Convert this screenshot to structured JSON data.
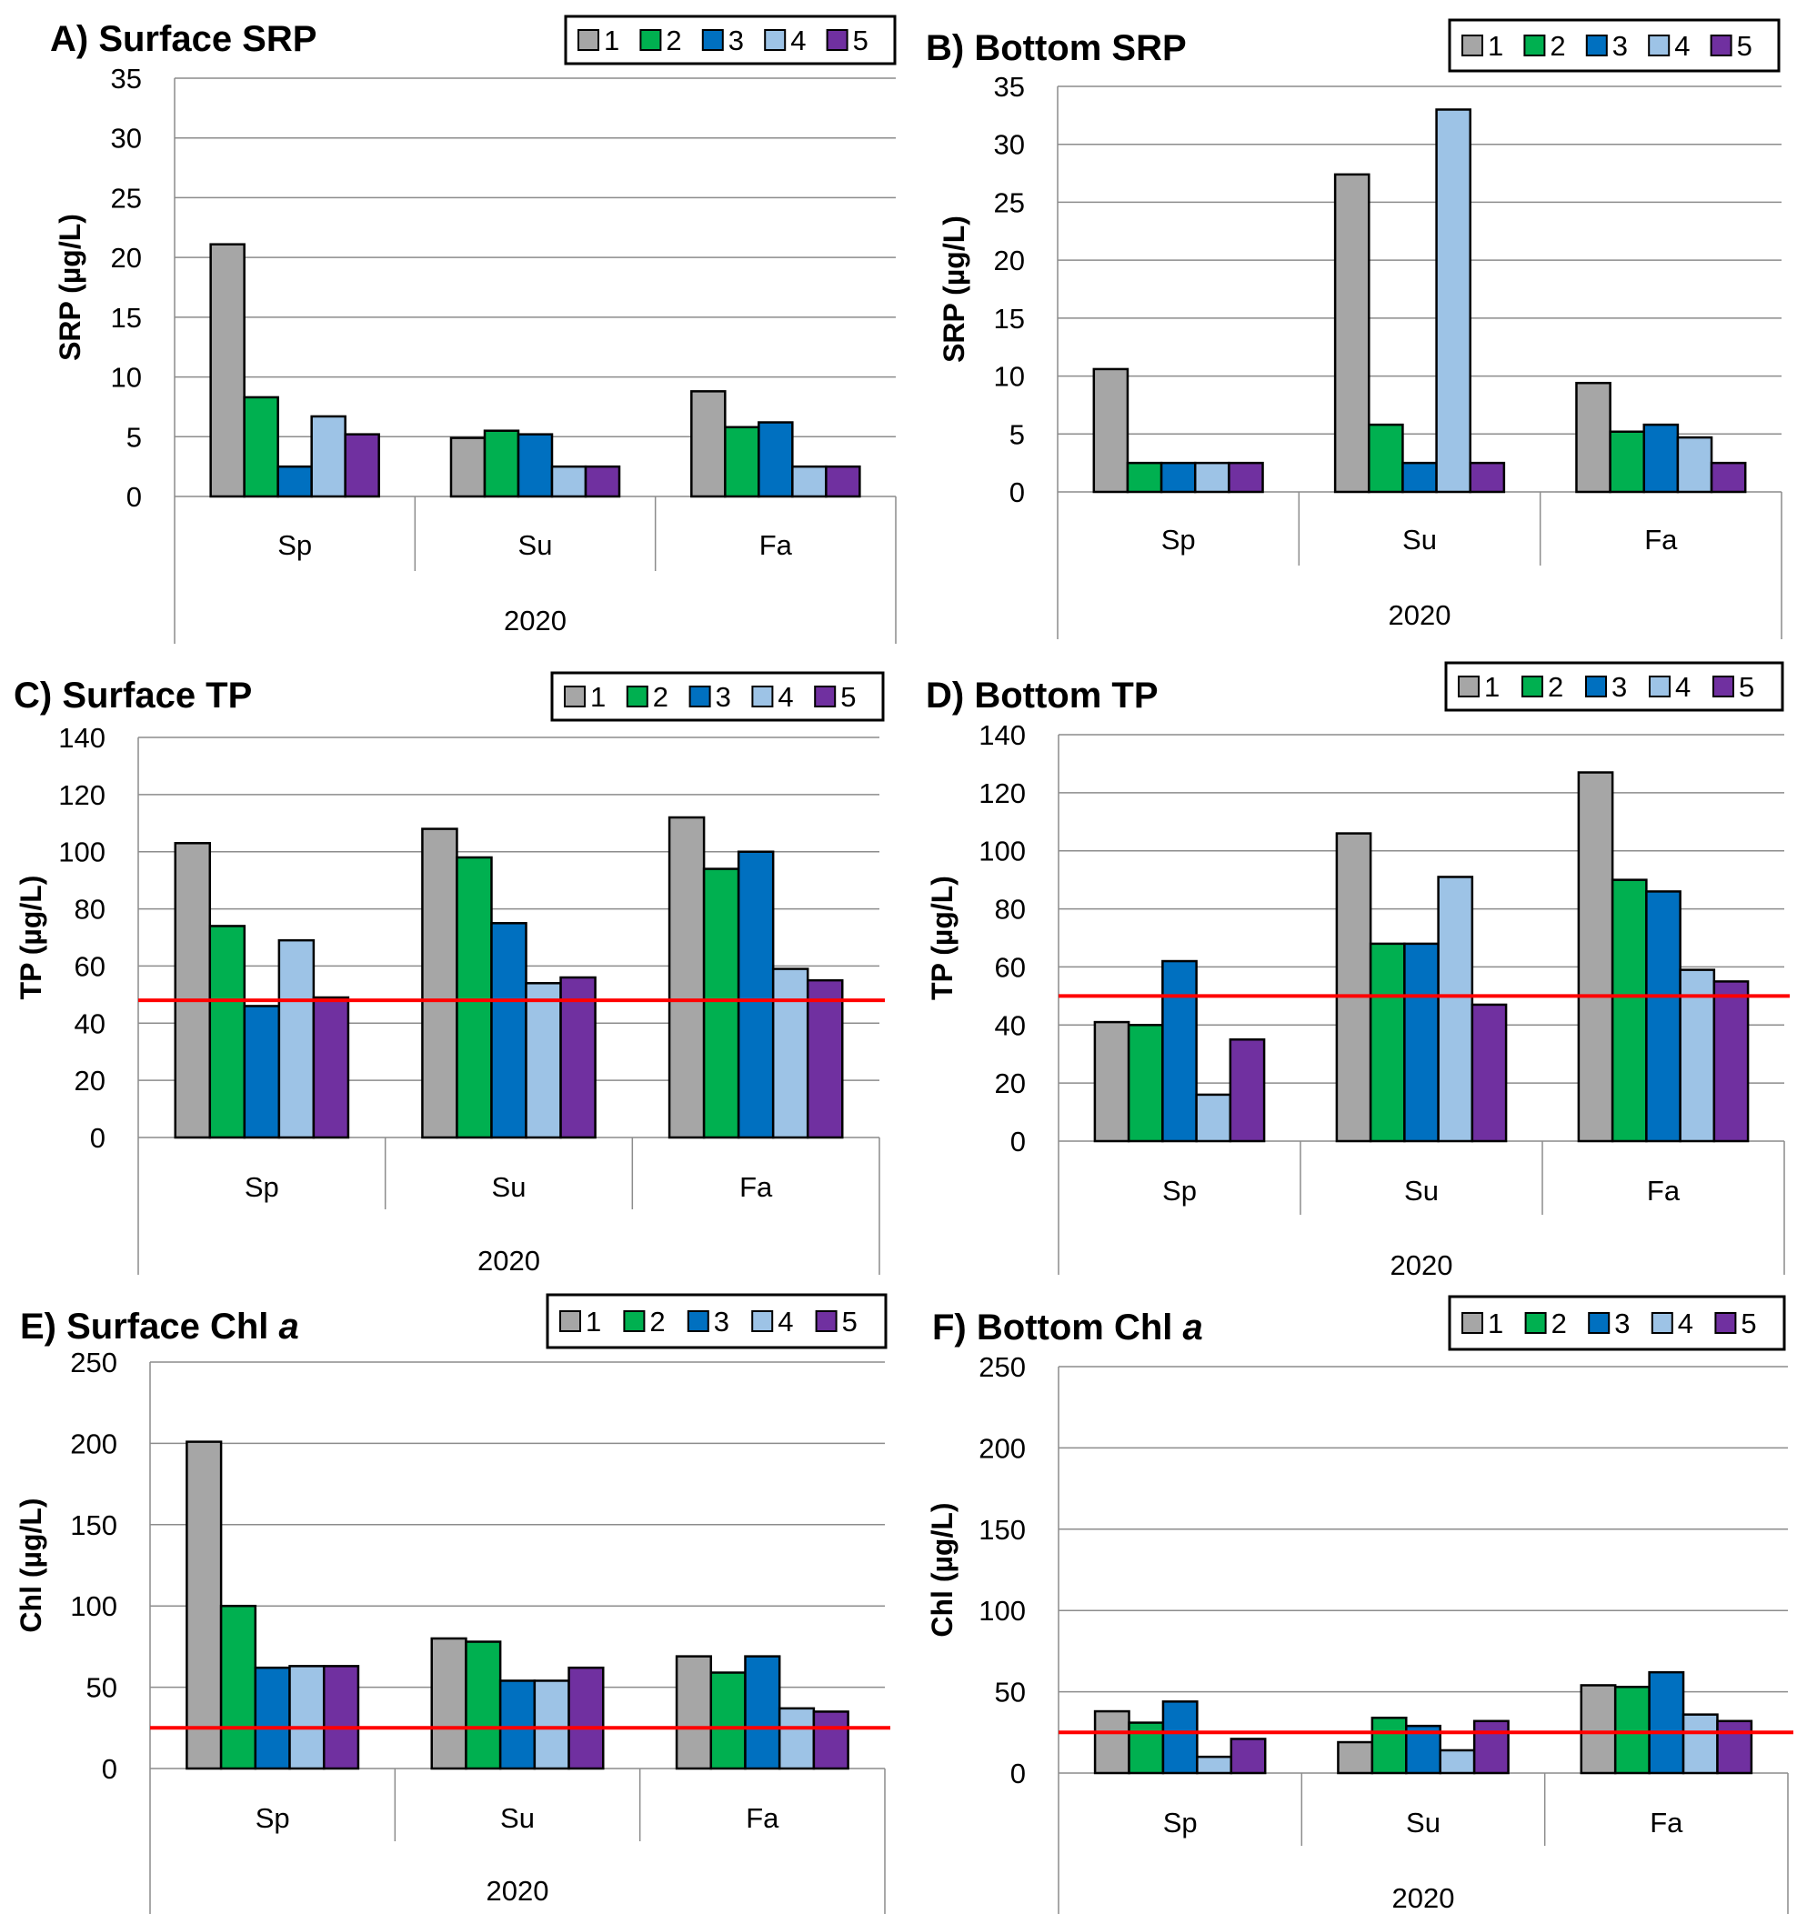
{
  "series_colors": [
    "#a6a6a6",
    "#00b050",
    "#0070c0",
    "#9dc3e6",
    "#7030a0"
  ],
  "legend_labels": [
    "1",
    "2",
    "3",
    "4",
    "5"
  ],
  "threshold_color": "#ff0000",
  "chart_data": [
    {
      "type": "bar",
      "title": "A) Surface SRP",
      "ylabel": "SRP (µg/L)",
      "ylim": [
        0,
        35
      ],
      "yticks": [
        0,
        5,
        10,
        15,
        20,
        25,
        30,
        35
      ],
      "categories": [
        "Sp",
        "Su",
        "Fa"
      ],
      "group_label": "2020",
      "legend": "top-right",
      "grid": true,
      "threshold": null,
      "series": [
        {
          "name": "1",
          "values": [
            21.1,
            4.9,
            8.8
          ]
        },
        {
          "name": "2",
          "values": [
            8.3,
            5.5,
            5.8
          ]
        },
        {
          "name": "3",
          "values": [
            2.5,
            5.2,
            6.2
          ]
        },
        {
          "name": "4",
          "values": [
            6.7,
            2.5,
            2.5
          ]
        },
        {
          "name": "5",
          "values": [
            5.2,
            2.5,
            2.5
          ]
        }
      ]
    },
    {
      "type": "bar",
      "title": "B) Bottom SRP",
      "ylabel": "SRP (µg/L)",
      "ylim": [
        0,
        35
      ],
      "yticks": [
        0,
        5,
        10,
        15,
        20,
        25,
        30,
        35
      ],
      "categories": [
        "Sp",
        "Su",
        "Fa"
      ],
      "group_label": "2020",
      "legend": "top-right",
      "grid": true,
      "threshold": null,
      "series": [
        {
          "name": "1",
          "values": [
            10.6,
            27.4,
            9.4
          ]
        },
        {
          "name": "2",
          "values": [
            2.5,
            5.8,
            5.2
          ]
        },
        {
          "name": "3",
          "values": [
            2.5,
            2.5,
            5.8
          ]
        },
        {
          "name": "4",
          "values": [
            2.5,
            33.0,
            4.7
          ]
        },
        {
          "name": "5",
          "values": [
            2.5,
            2.5,
            2.5
          ]
        }
      ]
    },
    {
      "type": "bar",
      "title": "C) Surface TP",
      "ylabel": "TP (µg/L)",
      "ylim": [
        0,
        140
      ],
      "yticks": [
        0,
        20,
        40,
        60,
        80,
        100,
        120,
        140
      ],
      "categories": [
        "Sp",
        "Su",
        "Fa"
      ],
      "group_label": "2020",
      "legend": "top-right",
      "grid": true,
      "threshold": 48,
      "series": [
        {
          "name": "1",
          "values": [
            103,
            108,
            112
          ]
        },
        {
          "name": "2",
          "values": [
            74,
            98,
            94
          ]
        },
        {
          "name": "3",
          "values": [
            46,
            75,
            100
          ]
        },
        {
          "name": "4",
          "values": [
            69,
            54,
            59
          ]
        },
        {
          "name": "5",
          "values": [
            49,
            56,
            55
          ]
        }
      ]
    },
    {
      "type": "bar",
      "title": "D) Bottom TP",
      "ylabel": "TP (µg/L)",
      "ylim": [
        0,
        140
      ],
      "yticks": [
        0,
        20,
        40,
        60,
        80,
        100,
        120,
        140
      ],
      "categories": [
        "Sp",
        "Su",
        "Fa"
      ],
      "group_label": "2020",
      "legend": "top-right",
      "grid": true,
      "threshold": 50,
      "series": [
        {
          "name": "1",
          "values": [
            41,
            106,
            127
          ]
        },
        {
          "name": "2",
          "values": [
            40,
            68,
            90
          ]
        },
        {
          "name": "3",
          "values": [
            62,
            68,
            86
          ]
        },
        {
          "name": "4",
          "values": [
            16,
            91,
            59
          ]
        },
        {
          "name": "5",
          "values": [
            35,
            47,
            55
          ]
        }
      ]
    },
    {
      "type": "bar",
      "title": "E) Surface Chl ",
      "title_italic": "a",
      "ylabel": "Chl (µg/L)",
      "ylim": [
        0,
        250
      ],
      "yticks": [
        0,
        50,
        100,
        150,
        200,
        250
      ],
      "categories": [
        "Sp",
        "Su",
        "Fa"
      ],
      "group_label": "2020",
      "legend": "top-right",
      "grid": true,
      "threshold": 25,
      "series": [
        {
          "name": "1",
          "values": [
            201,
            80,
            69
          ]
        },
        {
          "name": "2",
          "values": [
            100,
            78,
            59
          ]
        },
        {
          "name": "3",
          "values": [
            62,
            54,
            69
          ]
        },
        {
          "name": "4",
          "values": [
            63,
            54,
            37
          ]
        },
        {
          "name": "5",
          "values": [
            63,
            62,
            35
          ]
        }
      ]
    },
    {
      "type": "bar",
      "title": "F) Bottom Chl ",
      "title_italic": "a",
      "ylabel": "Chl (µg/L)",
      "ylim": [
        0,
        250
      ],
      "yticks": [
        0,
        50,
        100,
        150,
        200,
        250
      ],
      "categories": [
        "Sp",
        "Su",
        "Fa"
      ],
      "group_label": "2020",
      "legend": "top-right",
      "grid": true,
      "threshold": 25,
      "series": [
        {
          "name": "1",
          "values": [
            38,
            19,
            54
          ]
        },
        {
          "name": "2",
          "values": [
            31,
            34,
            53
          ]
        },
        {
          "name": "3",
          "values": [
            44,
            29,
            62
          ]
        },
        {
          "name": "4",
          "values": [
            10,
            14,
            36
          ]
        },
        {
          "name": "5",
          "values": [
            21,
            32,
            32
          ]
        }
      ]
    }
  ]
}
